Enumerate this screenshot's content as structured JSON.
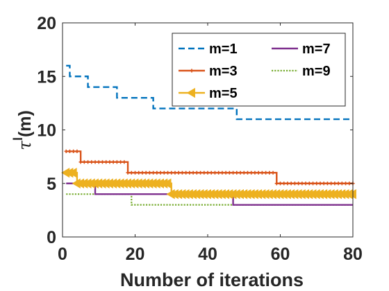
{
  "chart_data": {
    "type": "line",
    "title": "",
    "xlabel": "Number of iterations",
    "ylabel": "τ",
    "ylabel_superscript": "l",
    "ylabel_suffix": "(m)",
    "xlim": [
      0,
      80
    ],
    "ylim": [
      0,
      20
    ],
    "xticks": [
      0,
      20,
      40,
      60,
      80
    ],
    "yticks": [
      0,
      5,
      10,
      15,
      20
    ],
    "grid": false,
    "legend_position": "top-right",
    "series": [
      {
        "name": "m=1",
        "color": "#0072BD",
        "style": "dashed",
        "marker": "none",
        "points": [
          [
            1,
            16
          ],
          [
            2,
            15
          ],
          [
            6,
            15
          ],
          [
            7,
            14
          ],
          [
            14,
            14
          ],
          [
            15,
            13
          ],
          [
            24,
            13
          ],
          [
            25,
            12
          ],
          [
            47,
            12
          ],
          [
            48,
            11
          ],
          [
            80,
            11
          ]
        ]
      },
      {
        "name": "m=3",
        "color": "#D95319",
        "style": "solid",
        "marker": "plus",
        "points": [
          [
            1,
            8
          ],
          [
            4,
            8
          ],
          [
            5,
            7
          ],
          [
            17,
            7
          ],
          [
            18,
            6
          ],
          [
            58,
            6
          ],
          [
            59,
            5
          ],
          [
            80,
            5
          ]
        ]
      },
      {
        "name": "m=5",
        "color": "#EDB120",
        "style": "solid",
        "marker": "triangle-left",
        "points": [
          [
            1,
            6
          ],
          [
            3,
            6
          ],
          [
            4,
            5
          ],
          [
            29,
            5
          ],
          [
            30,
            4
          ],
          [
            80,
            4
          ]
        ]
      },
      {
        "name": "m=7",
        "color": "#7E2F8E",
        "style": "solid",
        "marker": "none",
        "points": [
          [
            1,
            5
          ],
          [
            8,
            5
          ],
          [
            9,
            4
          ],
          [
            46,
            4
          ],
          [
            47,
            3
          ],
          [
            80,
            3
          ]
        ]
      },
      {
        "name": "m=9",
        "color": "#77AC30",
        "style": "dotted",
        "marker": "none",
        "points": [
          [
            1,
            4
          ],
          [
            18,
            4
          ],
          [
            19,
            3
          ],
          [
            80,
            3
          ]
        ]
      }
    ]
  }
}
